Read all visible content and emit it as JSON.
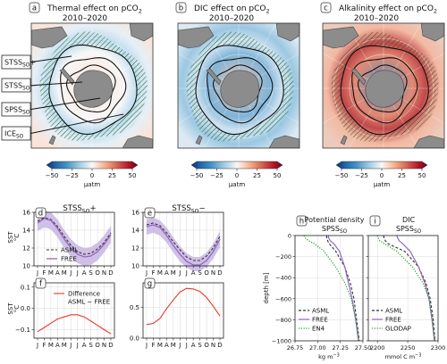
{
  "maps": {
    "panels": [
      {
        "letter": "a",
        "title_line1": "Thermal effect on pCO",
        "title_sub": "2",
        "title_line2": "2010–2020"
      },
      {
        "letter": "b",
        "title_line1": "DIC effect on pCO",
        "title_sub": "2",
        "title_line2": "2010–2020"
      },
      {
        "letter": "c",
        "title_line1": "Alkalinity effect on pCO",
        "title_sub": "2",
        "title_line2": "2010–2020"
      }
    ],
    "callouts": [
      {
        "main": "STSS",
        "sub": "SO",
        "suffix": "+"
      },
      {
        "main": "STSS",
        "sub": "SO",
        "suffix": "−"
      },
      {
        "main": "SPSS",
        "sub": "SO",
        "suffix": ""
      },
      {
        "main": "ICE",
        "sub": "SO",
        "suffix": ""
      }
    ],
    "colorbar": {
      "ticks": [
        "−50",
        "−25",
        "0",
        "25",
        "50"
      ],
      "unit": "µatm",
      "colors": [
        "#08306b",
        "#2166ac",
        "#4393c3",
        "#92c5de",
        "#d1e5f0",
        "#f7f7f7",
        "#fddbc7",
        "#f4a582",
        "#d6604d",
        "#b2182b",
        "#67001f"
      ]
    }
  },
  "colors": {
    "asml": "#333333",
    "free": "#9467bd",
    "free_band": "#c7b5e3",
    "diff": "#e8392a",
    "en4": "#2ca02c"
  },
  "chart_data": [
    {
      "type": "line",
      "id": "d",
      "letter": "d",
      "title_main": "STSS",
      "title_sub": "SO",
      "title_suffix": "+",
      "ylabel_line1": "SST",
      "ylabel_line2": "°C",
      "x": [
        "J",
        "F",
        "M",
        "A",
        "M",
        "J",
        "J",
        "A",
        "S",
        "O",
        "N",
        "D"
      ],
      "ylim": [
        10,
        16
      ],
      "yticks": [
        "10",
        "12",
        "14",
        "16"
      ],
      "series": [
        {
          "name": "ASML",
          "style": "dashed",
          "values": [
            15.0,
            15.4,
            15.2,
            14.4,
            13.3,
            12.3,
            11.6,
            11.3,
            11.4,
            11.9,
            12.6,
            13.7
          ]
        },
        {
          "name": "FREE",
          "style": "solid",
          "values": [
            14.8,
            15.3,
            15.1,
            14.2,
            13.0,
            12.0,
            11.3,
            11.0,
            11.1,
            11.6,
            12.4,
            13.5
          ],
          "band_low": [
            13.9,
            14.3,
            14.1,
            13.2,
            12.0,
            11.0,
            10.3,
            10.0,
            10.1,
            10.6,
            11.5,
            12.6
          ],
          "band_high": [
            15.8,
            16.2,
            16.0,
            15.2,
            14.0,
            13.0,
            12.3,
            12.0,
            12.1,
            12.6,
            13.4,
            14.5
          ]
        }
      ],
      "legend": [
        "ASML",
        "FREE"
      ]
    },
    {
      "type": "line",
      "id": "e",
      "letter": "e",
      "title_main": "STSS",
      "title_sub": "SO",
      "title_suffix": "−",
      "x": [
        "J",
        "F",
        "M",
        "A",
        "M",
        "J",
        "J",
        "A",
        "S",
        "O",
        "N",
        "D"
      ],
      "ylim": [
        10,
        16
      ],
      "yticks": [
        "10",
        "12",
        "14",
        "16"
      ],
      "series": [
        {
          "name": "ASML",
          "style": "dashed",
          "values": [
            14.6,
            14.8,
            14.5,
            13.7,
            12.7,
            11.8,
            11.0,
            10.6,
            10.6,
            11.1,
            12.0,
            13.3
          ]
        },
        {
          "name": "FREE",
          "style": "solid",
          "values": [
            14.4,
            14.6,
            14.3,
            13.4,
            12.3,
            11.3,
            10.5,
            10.1,
            10.1,
            10.6,
            11.6,
            13.0
          ],
          "band_low": [
            13.5,
            13.7,
            13.4,
            12.6,
            11.5,
            10.5,
            9.8,
            9.4,
            9.4,
            9.9,
            10.8,
            12.1
          ],
          "band_high": [
            15.2,
            15.4,
            15.1,
            14.3,
            13.2,
            12.2,
            11.4,
            11.0,
            11.0,
            11.5,
            12.5,
            13.9
          ]
        }
      ]
    },
    {
      "type": "line",
      "id": "f",
      "letter": "f",
      "ylabel_line1": "SST",
      "ylabel_line2": "°C",
      "x": [
        "J",
        "F",
        "M",
        "A",
        "M",
        "J",
        "J",
        "A",
        "S",
        "O",
        "N",
        "D"
      ],
      "ylim": [
        -0.14,
        0.12
      ],
      "yticks": [
        "−0.1",
        "0.0",
        "0.1"
      ],
      "series": [
        {
          "name": "Difference ASML − FREE",
          "values": [
            -0.11,
            -0.09,
            -0.07,
            -0.05,
            -0.04,
            -0.03,
            -0.03,
            -0.04,
            -0.06,
            -0.08,
            -0.1,
            -0.12
          ]
        }
      ],
      "legend": [
        "Difference",
        "ASML − FREE"
      ]
    },
    {
      "type": "line",
      "id": "g",
      "letter": "g",
      "x": [
        "J",
        "F",
        "M",
        "A",
        "M",
        "J",
        "J",
        "A",
        "S",
        "O",
        "N",
        "D"
      ],
      "ylim": [
        0,
        0.9
      ],
      "yticks": [
        "0.0",
        "0.5"
      ],
      "series": [
        {
          "name": "Difference ASML − FREE",
          "values": [
            0.22,
            0.24,
            0.32,
            0.48,
            0.62,
            0.75,
            0.81,
            0.8,
            0.76,
            0.66,
            0.52,
            0.36
          ]
        }
      ]
    },
    {
      "type": "line",
      "id": "h",
      "letter": "h",
      "title_line1": "Potential density",
      "title_main": "SPSS",
      "title_sub": "SO",
      "ylabel": "depth [m]",
      "xlabel": "kg m",
      "xlabel_sup": "−3",
      "xlim": [
        26.75,
        27.5
      ],
      "xticks": [
        "26.75",
        "27.00",
        "27.25",
        "27.50"
      ],
      "ylim": [
        -1000,
        0
      ],
      "yticks": [
        "0",
        "−200",
        "−400",
        "−600",
        "−800",
        "−1000"
      ],
      "series": [
        {
          "name": "ASML",
          "style": "dashed",
          "x": [
            27.1,
            27.1,
            27.11,
            27.13,
            27.2,
            27.3,
            27.36,
            27.4,
            27.43,
            27.46
          ],
          "depth": [
            0,
            -20,
            -50,
            -80,
            -150,
            -300,
            -450,
            -600,
            -800,
            -1000
          ]
        },
        {
          "name": "FREE",
          "style": "solid",
          "x": [
            27.12,
            27.12,
            27.14,
            27.18,
            27.24,
            27.3,
            27.34,
            27.38,
            27.42,
            27.45
          ],
          "depth": [
            0,
            -20,
            -50,
            -80,
            -150,
            -300,
            -450,
            -600,
            -800,
            -1000
          ]
        },
        {
          "name": "EN4",
          "style": "dotted",
          "x": [
            26.85,
            26.86,
            26.9,
            26.97,
            27.07,
            27.2,
            27.3,
            27.37,
            27.42,
            27.46
          ],
          "depth": [
            0,
            -20,
            -50,
            -80,
            -150,
            -300,
            -450,
            -600,
            -800,
            -1000
          ]
        }
      ],
      "legend": [
        "ASML",
        "FREE",
        "EN4"
      ]
    },
    {
      "type": "line",
      "id": "i",
      "letter": "i",
      "title_line1": "DIC",
      "title_main": "SPSS",
      "title_sub": "SO",
      "xlabel": "mmol C m",
      "xlabel_sup": "−3",
      "xlim": [
        2185,
        2300
      ],
      "xticks": [
        "2200",
        "2250",
        "2300"
      ],
      "ylim": [
        -1000,
        0
      ],
      "series": [
        {
          "name": "ASML",
          "style": "dashed",
          "x": [
            2210,
            2211,
            2213,
            2218,
            2245,
            2268,
            2280,
            2287,
            2292,
            2295
          ],
          "depth": [
            0,
            -20,
            -50,
            -80,
            -150,
            -300,
            -450,
            -600,
            -800,
            -1000
          ]
        },
        {
          "name": "FREE",
          "style": "solid",
          "x": [
            2232,
            2233,
            2236,
            2242,
            2254,
            2268,
            2278,
            2285,
            2290,
            2294
          ],
          "depth": [
            0,
            -20,
            -50,
            -80,
            -150,
            -300,
            -450,
            -600,
            -800,
            -1000
          ]
        },
        {
          "name": "GLODAP",
          "style": "dotted",
          "x": [
            2200,
            2201,
            2204,
            2212,
            2232,
            2258,
            2275,
            2285,
            2291,
            2295
          ],
          "depth": [
            0,
            -20,
            -50,
            -80,
            -150,
            -300,
            -450,
            -600,
            -800,
            -1000
          ]
        }
      ],
      "legend": [
        "ASML",
        "FREE",
        "GLODAP"
      ]
    }
  ]
}
